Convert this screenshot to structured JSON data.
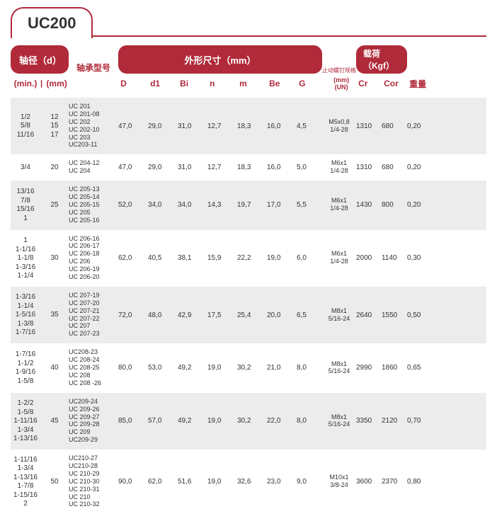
{
  "title": "UC200",
  "header": {
    "shaft_dia": "轴径（d）",
    "bearing_type": "轴承型号",
    "outer_dims": "外形尺寸（mm）",
    "thread_spec": "止动螺钉规格",
    "load": "载荷（Kgf）",
    "min": "(min.)",
    "sep": "|",
    "mm": "(mm)",
    "D": "D",
    "d1": "d1",
    "Bi": "Bi",
    "n": "n",
    "m": "m",
    "Be": "Be",
    "G": "G",
    "thread_sub1": "(mm)",
    "thread_sub2": "(UN)",
    "Cr": "Cr",
    "Cor": "Cor",
    "weight": "重量"
  },
  "rows": [
    {
      "min": [
        "1/2",
        "5/8",
        "11/16"
      ],
      "mm": [
        "12",
        "15",
        "17"
      ],
      "types": [
        "UC 201",
        "UC 201-08",
        "UC 202",
        "UC 202-10",
        "UC 203",
        "UC203-11"
      ],
      "D": "47,0",
      "d1": "29,0",
      "Bi": "31,0",
      "n": "12,7",
      "m": "18,3",
      "Be": "16,0",
      "G": "4,5",
      "thread": [
        "M5x0,8",
        "1/4-28"
      ],
      "Cr": "1310",
      "Cor": "680",
      "wt": "0,20"
    },
    {
      "min": [
        "3/4"
      ],
      "mm": [
        "20"
      ],
      "types": [
        "UC 204-12",
        "UC 204"
      ],
      "D": "47,0",
      "d1": "29,0",
      "Bi": "31,0",
      "n": "12,7",
      "m": "18,3",
      "Be": "16,0",
      "G": "5,0",
      "thread": [
        "M6x1",
        "1/4-28"
      ],
      "Cr": "1310",
      "Cor": "680",
      "wt": "0,20"
    },
    {
      "min": [
        "13/16",
        "7/8",
        "15/16",
        "1"
      ],
      "mm": [
        "25"
      ],
      "types": [
        "UC 205-13",
        "UC 205-14",
        "UC 205-15",
        "UC 205",
        "UC 205-16"
      ],
      "D": "52,0",
      "d1": "34,0",
      "Bi": "34,0",
      "n": "14,3",
      "m": "19,7",
      "Be": "17,0",
      "G": "5,5",
      "thread": [
        "M6x1",
        "1/4-28"
      ],
      "Cr": "1430",
      "Cor": "800",
      "wt": "0,20"
    },
    {
      "min": [
        "1",
        "1-1/16",
        "1-1/8",
        "1-3/16",
        "1-1/4"
      ],
      "mm": [
        "30"
      ],
      "types": [
        "UC 206-16",
        "UC 206-17",
        "UC 206-18",
        "UC 206",
        "UC 206-19",
        "UC 206-20"
      ],
      "D": "62,0",
      "d1": "40,5",
      "Bi": "38,1",
      "n": "15,9",
      "m": "22,2",
      "Be": "19,0",
      "G": "6,0",
      "thread": [
        "M6x1",
        "1/4-28"
      ],
      "Cr": "2000",
      "Cor": "1140",
      "wt": "0,30"
    },
    {
      "min": [
        "1-3/16",
        "1-1/4",
        "1-5/16",
        "1-3/8",
        "1-7/16"
      ],
      "mm": [
        "35"
      ],
      "types": [
        "UC 207-19",
        "UC 207-20",
        "UC 207-21",
        "UC 207-22",
        "UC 207",
        "UC 207-23"
      ],
      "D": "72,0",
      "d1": "48,0",
      "Bi": "42,9",
      "n": "17,5",
      "m": "25,4",
      "Be": "20,0",
      "G": "6,5",
      "thread": [
        "M8x1",
        "5/16-24"
      ],
      "Cr": "2640",
      "Cor": "1550",
      "wt": "0,50"
    },
    {
      "min": [
        "1-7/16",
        "1-1/2",
        "1-9/16",
        "1-5/8"
      ],
      "mm": [
        "40"
      ],
      "types": [
        "UC208-23",
        "UC 208-24",
        "UC 208-25",
        "UC 208",
        "UC 208 -26"
      ],
      "D": "80,0",
      "d1": "53,0",
      "Bi": "49,2",
      "n": "19,0",
      "m": "30,2",
      "Be": "21,0",
      "G": "8,0",
      "thread": [
        "M8x1",
        "5/16-24"
      ],
      "Cr": "2990",
      "Cor": "1860",
      "wt": "0,65"
    },
    {
      "min": [
        "1-2/2",
        "1-5/8",
        "1-11/16",
        "1-3/4",
        "1-13/16"
      ],
      "mm": [
        "45"
      ],
      "types": [
        "UC209-24",
        "UC 209-26",
        "UC 209-27",
        "UC 209-28",
        "UC 209",
        "UC209-29"
      ],
      "D": "85,0",
      "d1": "57,0",
      "Bi": "49,2",
      "n": "19,0",
      "m": "30,2",
      "Be": "22,0",
      "G": "8,0",
      "thread": [
        "M8x1",
        "5/16-24"
      ],
      "Cr": "3350",
      "Cor": "2120",
      "wt": "0,70"
    },
    {
      "min": [
        "1-11/16",
        "1-3/4",
        "1-13/16",
        "1-7/8",
        "1-15/16",
        "2"
      ],
      "mm": [
        "50"
      ],
      "types": [
        "UC210-27",
        "UC210-28",
        "UC 210-29",
        "UC 210-30",
        "UC 210-31",
        "UC 210",
        "UC 210-32"
      ],
      "D": "90,0",
      "d1": "62,0",
      "Bi": "51,6",
      "n": "19,0",
      "m": "32,6",
      "Be": "23,0",
      "G": "9,0",
      "thread": [
        "M10x1",
        "3/8-24"
      ],
      "Cr": "3600",
      "Cor": "2370",
      "wt": "0,80"
    }
  ],
  "style": {
    "accent": "#b02a3a",
    "alt_bg": "#ececec",
    "text": "#333333",
    "bg": "#ffffff"
  }
}
